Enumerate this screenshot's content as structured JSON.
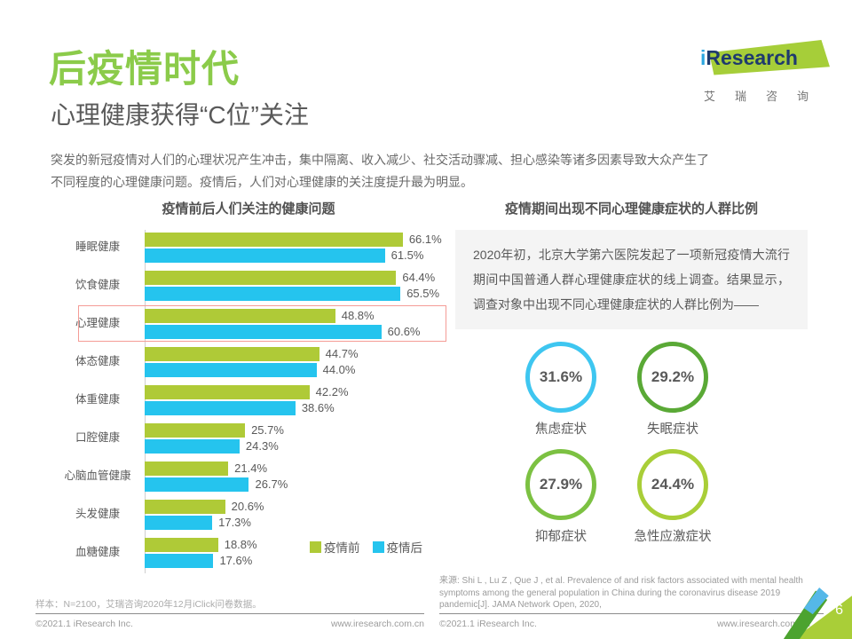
{
  "header": {
    "title": "后疫情时代",
    "subtitle": "心理健康获得“C位”关注",
    "intro_line1": "突发的新冠疫情对人们的心理状况产生冲击，集中隔离、收入减少、社交活动骤减、担心感染等诸多因素导致大众产生了",
    "intro_line2": "不同程度的心理健康问题。疫情后，人们对心理健康的关注度提升最为明显。"
  },
  "logo": {
    "brand_i": "i",
    "brand_rest": "Research",
    "brand_cn": "艾瑞咨询",
    "brand_green": "#A6CE39",
    "brand_blue": "#2CA6E0",
    "brand_navy": "#1E3A6E"
  },
  "chart_data": [
    {
      "type": "bar",
      "orientation": "horizontal",
      "title": "疫情前后人们关注的健康问题",
      "categories": [
        "睡眠健康",
        "饮食健康",
        "心理健康",
        "体态健康",
        "体重健康",
        "口腔健康",
        "心脑血管健康",
        "头发健康",
        "血糖健康"
      ],
      "series": [
        {
          "name": "疫情前",
          "color": "#AFCA37",
          "values": [
            66.1,
            64.4,
            48.8,
            44.7,
            42.2,
            25.7,
            21.4,
            20.6,
            18.8
          ]
        },
        {
          "name": "疫情后",
          "color": "#25C4EE",
          "values": [
            61.5,
            65.5,
            60.6,
            44.0,
            38.6,
            24.3,
            26.7,
            17.3,
            17.6
          ]
        }
      ],
      "value_suffix": "%",
      "xlim": [
        0,
        70
      ],
      "grid": false,
      "legend_position": "bottom-right",
      "highlight_category": "心理健康",
      "highlight_color": "#F49C96"
    },
    {
      "type": "kpi-circles",
      "title": "疫情期间出现不同心理健康症状的人群比例",
      "items": [
        {
          "label": "焦虑症状",
          "value": "31.6%",
          "color": "#3EC6F0"
        },
        {
          "label": "失眠症状",
          "value": "29.2%",
          "color": "#5AA936"
        },
        {
          "label": "抑郁症状",
          "value": "27.9%",
          "color": "#7CC142"
        },
        {
          "label": "急性应激症状",
          "value": "24.4%",
          "color": "#A9CE38"
        }
      ]
    }
  ],
  "right_panel": {
    "note": "2020年初，北京大学第六医院发起了一项新冠疫情大流行期间中国普通人群心理健康症状的线上调查。结果显示，调查对象中出现不同心理健康症状的人群比例为——",
    "source": "来源: Shi L , Lu Z , Que J , et al. Prevalence of and risk factors associated with mental health symptoms among the general population in China during the coronavirus disease 2019 pandemic[J]. JAMA Network Open, 2020,"
  },
  "footer": {
    "sample_note": "样本：N=2100，艾瑞咨询2020年12月iClick问卷数据。",
    "copyright": "©2021.1 iResearch Inc.",
    "website": "www.iresearch.com.cn",
    "page_number": "6"
  }
}
